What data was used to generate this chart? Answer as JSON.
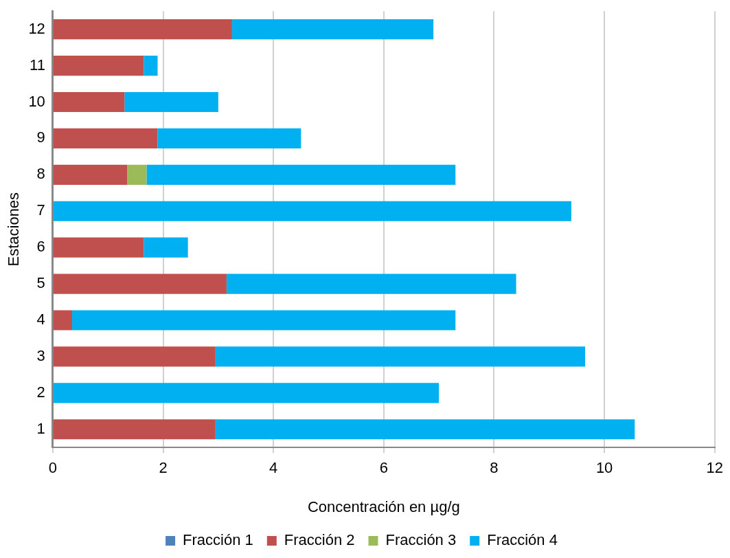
{
  "chart_data": {
    "type": "bar",
    "orientation": "horizontal",
    "stacked": true,
    "xlabel": "Concentración en µg/g",
    "ylabel": "Estaciones",
    "categories": [
      "12",
      "11",
      "10",
      "9",
      "8",
      "7",
      "6",
      "5",
      "4",
      "3",
      "2",
      "1"
    ],
    "series": [
      {
        "name": "Fracción 1",
        "color": "#4f81bd",
        "values": [
          0,
          0,
          0,
          0,
          0,
          0,
          0,
          0,
          0,
          0,
          0,
          0
        ]
      },
      {
        "name": "Fracción 2",
        "color": "#c0504d",
        "values": [
          3.25,
          1.65,
          1.3,
          1.9,
          1.35,
          0,
          1.65,
          3.15,
          0.35,
          2.95,
          0,
          2.95
        ]
      },
      {
        "name": "Fracción 3",
        "color": "#9bbb59",
        "values": [
          0,
          0,
          0,
          0,
          0.35,
          0,
          0,
          0,
          0,
          0,
          0,
          0
        ]
      },
      {
        "name": "Fracción 4",
        "color": "#00b0f0",
        "values": [
          3.65,
          0.25,
          1.7,
          2.6,
          5.6,
          9.4,
          0.8,
          5.25,
          6.95,
          6.7,
          7.0,
          7.6
        ]
      }
    ],
    "xlim": [
      0,
      12
    ],
    "xticks": [
      0,
      2,
      4,
      6,
      8,
      10,
      12
    ],
    "grid": "x",
    "legend": "bottom"
  }
}
